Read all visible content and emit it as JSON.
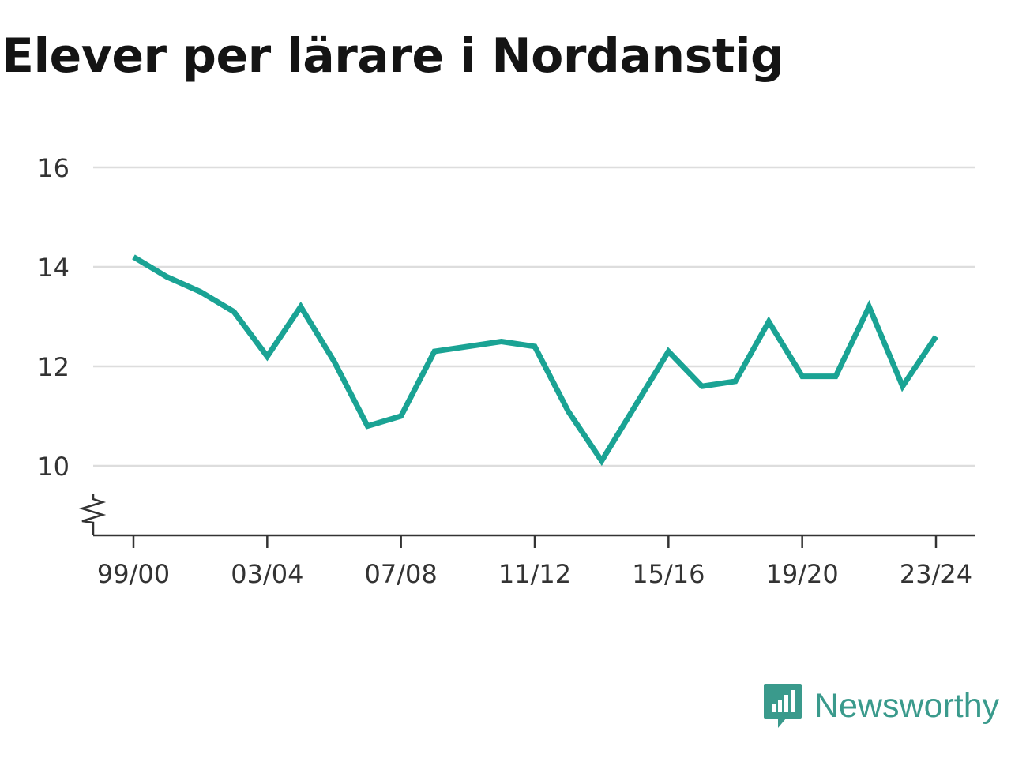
{
  "chart_data": {
    "type": "line",
    "title": "Elever per lärare i Nordanstig",
    "x": [
      "99/00",
      "00/01",
      "01/02",
      "02/03",
      "03/04",
      "04/05",
      "05/06",
      "06/07",
      "07/08",
      "08/09",
      "09/10",
      "10/11",
      "11/12",
      "12/13",
      "13/14",
      "14/15",
      "15/16",
      "16/17",
      "17/18",
      "18/19",
      "19/20",
      "20/21",
      "21/22",
      "22/23",
      "23/24"
    ],
    "x_tick_labels": [
      "99/00",
      "03/04",
      "07/08",
      "11/12",
      "15/16",
      "19/20",
      "23/24"
    ],
    "series": [
      {
        "values": [
          14.2,
          13.8,
          13.5,
          13.1,
          12.2,
          13.2,
          12.1,
          10.8,
          11.0,
          12.3,
          12.4,
          12.5,
          12.4,
          11.1,
          10.1,
          11.2,
          12.3,
          11.6,
          11.7,
          12.9,
          11.8,
          11.8,
          13.2,
          11.6,
          12.6
        ],
        "color": "#1aa394"
      }
    ],
    "yticks": [
      10,
      12,
      14,
      16
    ],
    "ylim": [
      8.6,
      16
    ],
    "axis_break": true,
    "grid": true,
    "gridline_color": "#dddddd",
    "axis_color": "#333333"
  },
  "brand": {
    "name": "Newsworthy",
    "logo_icon": "newsworthy-chart-bubble-icon",
    "color": "#3a9a8c"
  }
}
